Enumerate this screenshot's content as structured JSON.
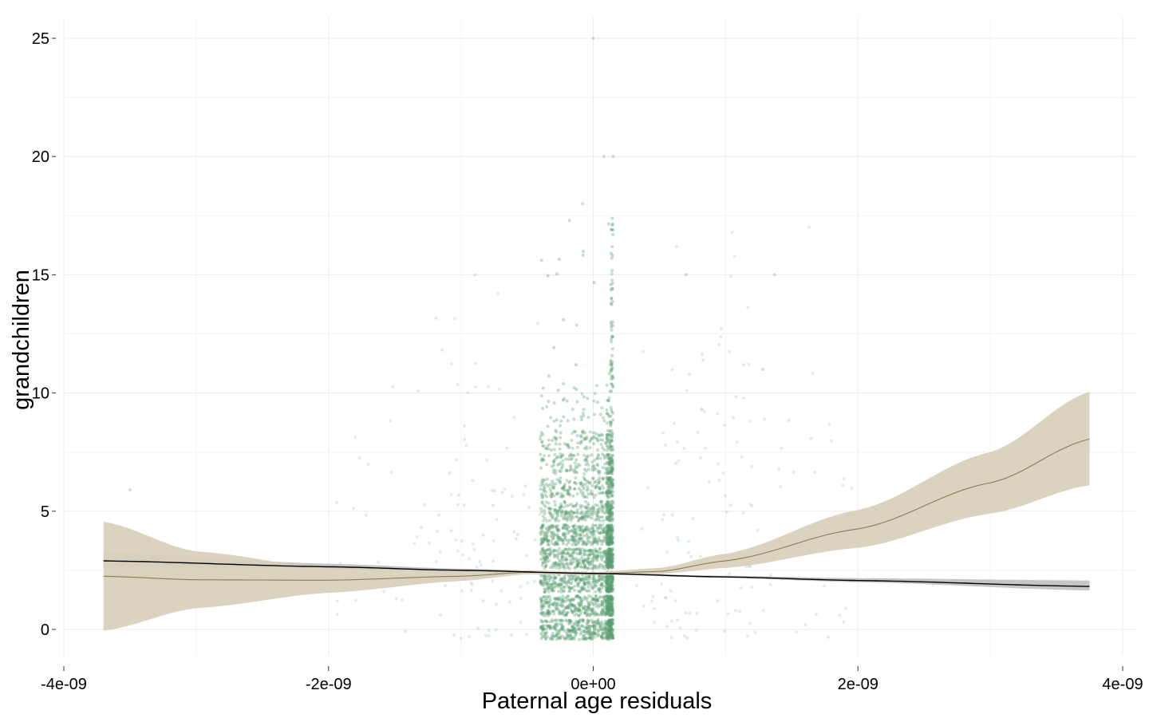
{
  "chart_data": {
    "type": "scatter",
    "title": "",
    "xlabel": "Paternal age residuals",
    "ylabel": "grandchildren",
    "xlim": [
      -4e-09,
      4e-09
    ],
    "ylim": [
      -1.5,
      25.8
    ],
    "x_ticks": [
      {
        "value": -4e-09,
        "label": "-4e-09"
      },
      {
        "value": -2e-09,
        "label": "-2e-09"
      },
      {
        "value": 0,
        "label": "0e+00"
      },
      {
        "value": 2e-09,
        "label": "2e-09"
      },
      {
        "value": 4e-09,
        "label": "4e-09"
      }
    ],
    "y_ticks": [
      {
        "value": 0,
        "label": "0"
      },
      {
        "value": 5,
        "label": "5"
      },
      {
        "value": 10,
        "label": "10"
      },
      {
        "value": 15,
        "label": "15"
      },
      {
        "value": 20,
        "label": "20"
      },
      {
        "value": 25,
        "label": "25"
      }
    ],
    "grid": true,
    "legend": "none",
    "colors": {
      "points": "#5a9e6f",
      "linear_line": "#000000",
      "linear_band": "#b3b3b3",
      "smooth_line": "#8b7d55",
      "smooth_band": "#d9d0bd"
    },
    "points_summary": {
      "dense_x_range": [
        -4e-10,
        1.5e-10
      ],
      "count_range": [
        0,
        17
      ],
      "sparse_outliers": [
        {
          "x": 0.0,
          "y": 25
        },
        {
          "x": 8e-11,
          "y": 20
        },
        {
          "x": 1.5e-10,
          "y": 20
        },
        {
          "x": -8e-11,
          "y": 18
        },
        {
          "x": -1.8e-10,
          "y": 17.3
        },
        {
          "x": 7e-10,
          "y": 15
        },
        {
          "x": 1.37e-09,
          "y": 15
        },
        {
          "x": -3.5e-09,
          "y": 5.9
        },
        {
          "x": 1.28e-09,
          "y": 11
        },
        {
          "x": 8.2e-10,
          "y": 9.3
        }
      ]
    },
    "series": [
      {
        "kind": "linear_fit",
        "x": [
          -3.7e-09,
          -2e-09,
          -1e-09,
          0,
          1e-09,
          2e-09,
          3.75e-09
        ],
        "y": [
          2.9,
          2.65,
          2.5,
          2.37,
          2.22,
          2.07,
          1.82
        ],
        "lower": [
          2.65,
          2.55,
          2.45,
          2.33,
          2.18,
          2.0,
          1.65
        ],
        "upper": [
          3.25,
          2.78,
          2.57,
          2.41,
          2.27,
          2.17,
          2.07
        ]
      },
      {
        "kind": "smooth_fit",
        "x": [
          -3.7e-09,
          -3e-09,
          -2e-09,
          -1e-09,
          -5e-10,
          0,
          5e-10,
          1e-09,
          2e-09,
          3e-09,
          3.75e-09
        ],
        "y": [
          2.25,
          2.1,
          2.08,
          2.25,
          2.42,
          2.35,
          2.45,
          2.9,
          4.25,
          6.2,
          8.05
        ],
        "lower": [
          -0.05,
          0.9,
          1.55,
          2.05,
          2.33,
          2.3,
          2.35,
          2.6,
          3.45,
          4.9,
          6.1
        ],
        "upper": [
          4.55,
          3.3,
          2.6,
          2.45,
          2.5,
          2.42,
          2.6,
          3.2,
          5.05,
          7.5,
          10.05
        ]
      }
    ]
  }
}
